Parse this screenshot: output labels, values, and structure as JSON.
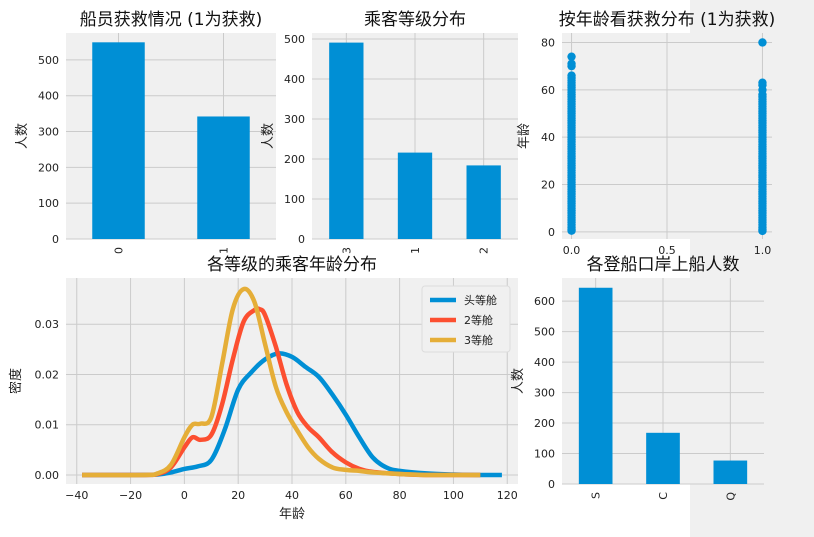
{
  "colors": {
    "figure_bg": "#ffffff",
    "axes_bg": "#f0f0f0",
    "grid": "#cbcbcb",
    "bar": "#008fd5",
    "series": [
      "#008fd5",
      "#fc4f30",
      "#e5ae38"
    ]
  },
  "chart_data": [
    {
      "id": "survival",
      "type": "bar",
      "title": "船员获救情况 (1为获救)",
      "ylabel": "人数",
      "xlabel": "",
      "categories": [
        "0",
        "1"
      ],
      "values": [
        549,
        342
      ],
      "ylim": [
        0,
        575
      ],
      "yticks": [
        0,
        100,
        200,
        300,
        400,
        500
      ],
      "grid": true,
      "xtick_rotation": 90
    },
    {
      "id": "pclass",
      "type": "bar",
      "title": "乘客等级分布",
      "ylabel": "人数",
      "xlabel": "",
      "categories": [
        "3",
        "1",
        "2"
      ],
      "values": [
        491,
        216,
        184
      ],
      "ylim": [
        0,
        515
      ],
      "yticks": [
        0,
        100,
        200,
        300,
        400,
        500
      ],
      "grid": true,
      "xtick_rotation": 90
    },
    {
      "id": "age_survival",
      "type": "scatter",
      "title": "按年龄看获救分布 (1为获救)",
      "ylabel": "年龄",
      "xlabel": "",
      "xlim": [
        -0.05,
        1.05
      ],
      "ylim": [
        -3,
        84
      ],
      "xticks": [
        0.0,
        0.5,
        1.0
      ],
      "xtick_labels": [
        "0.0",
        "0.5",
        "1.0"
      ],
      "yticks": [
        0,
        20,
        40,
        60,
        80
      ],
      "grid": true,
      "series": [
        {
          "x": [
            0,
            0,
            0,
            0,
            0,
            0,
            0,
            0,
            0,
            0,
            0,
            0,
            0,
            0,
            0,
            0,
            0,
            0,
            0,
            0,
            0,
            0,
            0,
            0,
            0,
            0,
            0,
            0,
            0,
            0,
            0,
            0,
            0,
            0,
            0,
            0,
            0,
            0,
            0,
            0,
            0,
            0,
            0,
            0,
            0,
            0,
            0,
            0,
            0,
            0,
            0,
            0,
            0,
            0,
            0,
            0,
            0,
            0,
            0,
            0,
            0,
            0,
            0,
            0,
            0,
            0,
            0,
            0,
            0,
            0,
            1,
            1,
            1,
            1,
            1,
            1,
            1,
            1,
            1,
            1,
            1,
            1,
            1,
            1,
            1,
            1,
            1,
            1,
            1,
            1,
            1,
            1,
            1,
            1,
            1,
            1,
            1,
            1,
            1,
            1,
            1,
            1,
            1,
            1,
            1,
            1,
            1,
            1,
            1,
            1,
            1,
            1,
            1,
            1,
            1,
            1,
            1,
            1,
            1,
            1,
            1,
            1,
            1,
            1,
            1,
            1,
            1,
            1,
            1,
            1,
            1,
            1,
            1
          ],
          "y": [
            1,
            2,
            3,
            4,
            5,
            6,
            7,
            8,
            9,
            10,
            11,
            12,
            13,
            14,
            15,
            16,
            17,
            18,
            19,
            20,
            21,
            22,
            23,
            24,
            25,
            26,
            27,
            28,
            29,
            30,
            31,
            32,
            33,
            34,
            35,
            36,
            37,
            38,
            39,
            40,
            41,
            42,
            43,
            44,
            45,
            46,
            47,
            48,
            49,
            50,
            51,
            52,
            53,
            54,
            55,
            56,
            57,
            58,
            59,
            60,
            61,
            62,
            63,
            64,
            65,
            66,
            70,
            71,
            74,
            0.5,
            0.4,
            1,
            2,
            3,
            4,
            5,
            6,
            7,
            8,
            9,
            10,
            11,
            12,
            13,
            14,
            15,
            16,
            17,
            18,
            19,
            20,
            21,
            22,
            23,
            24,
            25,
            26,
            27,
            28,
            29,
            30,
            31,
            32,
            33,
            34,
            35,
            36,
            37,
            38,
            39,
            40,
            41,
            42,
            43,
            44,
            45,
            46,
            47,
            48,
            49,
            50,
            51,
            52,
            53,
            54,
            55,
            56,
            57,
            58,
            60,
            62,
            63,
            80
          ]
        }
      ]
    },
    {
      "id": "age_kde",
      "type": "line",
      "title": "各等级的乘客年龄分布",
      "xlabel": "年龄",
      "ylabel": "密度",
      "xlim": [
        -44,
        124
      ],
      "ylim": [
        -0.0018,
        0.0392
      ],
      "xticks": [
        -40,
        -20,
        0,
        20,
        40,
        60,
        80,
        100,
        120
      ],
      "yticks": [
        0.0,
        0.01,
        0.02,
        0.03
      ],
      "ytick_labels": [
        "0.00",
        "0.01",
        "0.02",
        "0.03"
      ],
      "legend_position": "upper-right",
      "grid": true,
      "series": [
        {
          "name": "头等舱",
          "x": [
            -38,
            -20,
            -10,
            -5,
            0,
            5,
            10,
            15,
            20,
            25,
            30,
            35,
            40,
            45,
            50,
            55,
            60,
            65,
            70,
            75,
            80,
            90,
            100,
            110,
            118
          ],
          "y": [
            0,
            0,
            0.0001,
            0.0005,
            0.0012,
            0.0017,
            0.003,
            0.009,
            0.017,
            0.0205,
            0.023,
            0.0242,
            0.0235,
            0.0215,
            0.0195,
            0.016,
            0.012,
            0.0075,
            0.0035,
            0.0015,
            0.0008,
            0.0003,
            0.0001,
            0,
            0
          ]
        },
        {
          "name": "2等舱",
          "x": [
            -38,
            -15,
            -10,
            -5,
            0,
            3,
            6,
            10,
            14,
            18,
            22,
            26,
            28,
            30,
            34,
            38,
            42,
            46,
            50,
            55,
            60,
            65,
            70,
            80,
            90,
            100,
            110
          ],
          "y": [
            0,
            0,
            0.0002,
            0.0015,
            0.0055,
            0.0075,
            0.007,
            0.008,
            0.014,
            0.023,
            0.0305,
            0.0328,
            0.033,
            0.0318,
            0.0255,
            0.018,
            0.0125,
            0.0095,
            0.0075,
            0.0045,
            0.0025,
            0.0012,
            0.0006,
            0.0002,
            0,
            0,
            0
          ]
        },
        {
          "name": "3等舱",
          "x": [
            -38,
            -15,
            -10,
            -5,
            0,
            3,
            6,
            10,
            14,
            18,
            22,
            26,
            30,
            34,
            38,
            42,
            46,
            50,
            55,
            60,
            65,
            70,
            80,
            90,
            100,
            110
          ],
          "y": [
            0,
            0,
            0.0003,
            0.002,
            0.0075,
            0.01,
            0.0102,
            0.0115,
            0.022,
            0.033,
            0.037,
            0.0345,
            0.026,
            0.0175,
            0.0125,
            0.0088,
            0.0055,
            0.0032,
            0.0015,
            0.001,
            0.0008,
            0.0005,
            0.0002,
            0,
            0,
            0
          ]
        }
      ]
    },
    {
      "id": "embarked",
      "type": "bar",
      "title": "各登船口岸上船人数",
      "ylabel": "人数",
      "xlabel": "",
      "categories": [
        "S",
        "C",
        "Q"
      ],
      "values": [
        644,
        168,
        77
      ],
      "ylim": [
        0,
        676
      ],
      "yticks": [
        0,
        100,
        200,
        300,
        400,
        500,
        600
      ],
      "grid": true,
      "xtick_rotation": 90
    }
  ]
}
